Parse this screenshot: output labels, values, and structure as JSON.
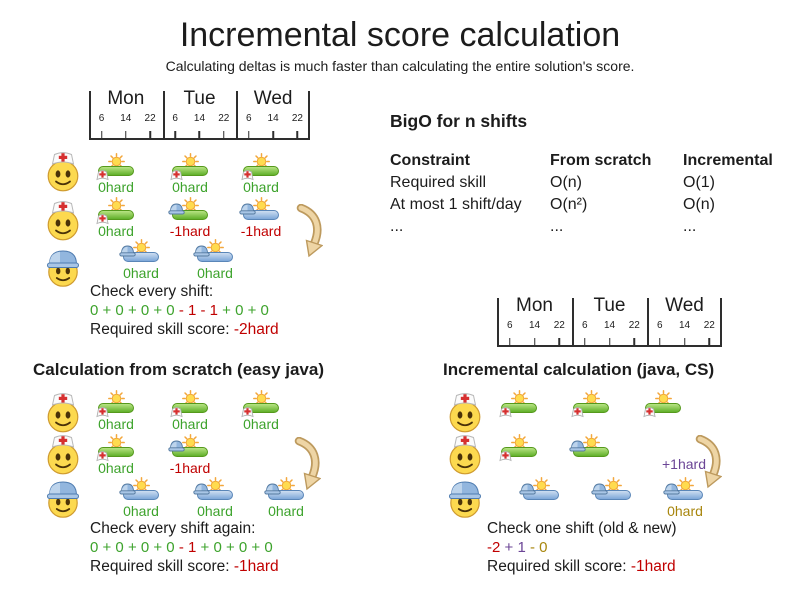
{
  "page": {
    "title": "Incremental score calculation",
    "subtitle": "Calculating deltas is much faster than calculating the entire solution's score."
  },
  "colors": {
    "positive_green": "#3da32c",
    "negative_red": "#c00000",
    "undo_purple": "#6b4596",
    "new_gold": "#a8860d",
    "arrow_tan": "#bd9a5e"
  },
  "timeline": {
    "days": [
      "Mon",
      "Tue",
      "Wed"
    ],
    "hours": [
      "6",
      "14",
      "22"
    ]
  },
  "bigo": {
    "title": "BigO for n shifts",
    "headers": [
      "Constraint",
      "From scratch",
      "Incremental"
    ],
    "rows": [
      [
        "Required skill",
        "O(n)",
        "O(1)"
      ],
      [
        "At most 1 shift/day",
        "O(n²)",
        "O(n)"
      ],
      [
        "...",
        "...",
        "..."
      ]
    ]
  },
  "sections": {
    "initial": {
      "check_label": "Check every shift:",
      "sum_parts": [
        {
          "text": "0 + 0 + 0 + 0",
          "color": "green"
        },
        {
          "text": " - 1 - 1",
          "color": "red"
        },
        {
          "text": " + 0 + 0",
          "color": "green"
        }
      ],
      "score_label": "Required skill score: ",
      "score_value": "-2hard"
    },
    "scratch": {
      "heading": "Calculation from scratch (easy java)",
      "check_label": "Check every shift again:",
      "sum_parts": [
        {
          "text": "0 + 0 + 0 + 0",
          "color": "green"
        },
        {
          "text": " - 1",
          "color": "red"
        },
        {
          "text": " + 0 + 0 + 0",
          "color": "green"
        }
      ],
      "score_label": "Required skill score: ",
      "score_value": "-1hard"
    },
    "incremental": {
      "heading": "Incremental calculation (java, CS)",
      "check_label": "Check one shift (old & new)",
      "sum_parts": [
        {
          "text": "-2",
          "color": "red"
        },
        {
          "text": " + 1",
          "color": "purple"
        },
        {
          "text": " - 0",
          "color": "gold"
        }
      ],
      "score_label": "Required skill score: ",
      "score_value": "-1hard",
      "delta_label": "+1hard"
    }
  },
  "diagrams": {
    "initial": {
      "rows": [
        {
          "employee": "nurse",
          "shifts": [
            {
              "day": 0,
              "bar": "green",
              "hat": "nurse",
              "label": "0hard",
              "label_color": "green"
            },
            {
              "day": 1,
              "bar": "green",
              "hat": "nurse",
              "label": "0hard",
              "label_color": "green"
            },
            {
              "day": 2,
              "bar": "green",
              "hat": "nurse",
              "label": "0hard",
              "label_color": "green"
            }
          ]
        },
        {
          "employee": "nurse",
          "shifts": [
            {
              "day": 0,
              "bar": "green",
              "hat": "nurse",
              "label": "0hard",
              "label_color": "green"
            },
            {
              "day": 1,
              "bar": "green",
              "hat": "helmet",
              "label": "-1hard",
              "label_color": "red"
            },
            {
              "day": 2,
              "bar": "blue",
              "hat": "helmet",
              "label": "-1hard",
              "label_color": "red"
            }
          ]
        },
        {
          "employee": "worker",
          "shifts": [
            {
              "day": 0,
              "late": true,
              "bar": "blue",
              "hat": "helmet",
              "label": "0hard",
              "label_color": "green"
            },
            {
              "day": 1,
              "late": true,
              "bar": "blue",
              "hat": "helmet",
              "label": "0hard",
              "label_color": "green"
            }
          ]
        }
      ]
    },
    "scratch": {
      "rows": [
        {
          "employee": "nurse",
          "shifts": [
            {
              "day": 0,
              "bar": "green",
              "hat": "nurse",
              "label": "0hard",
              "label_color": "green"
            },
            {
              "day": 1,
              "bar": "green",
              "hat": "nurse",
              "label": "0hard",
              "label_color": "green"
            },
            {
              "day": 2,
              "bar": "green",
              "hat": "nurse",
              "label": "0hard",
              "label_color": "green"
            }
          ]
        },
        {
          "employee": "nurse",
          "shifts": [
            {
              "day": 0,
              "bar": "green",
              "hat": "nurse",
              "label": "0hard",
              "label_color": "green"
            },
            {
              "day": 1,
              "bar": "green",
              "hat": "helmet",
              "label": "-1hard",
              "label_color": "red"
            }
          ]
        },
        {
          "employee": "worker",
          "shifts": [
            {
              "day": 0,
              "late": true,
              "bar": "blue",
              "hat": "helmet",
              "label": "0hard",
              "label_color": "green"
            },
            {
              "day": 1,
              "late": true,
              "bar": "blue",
              "hat": "helmet",
              "label": "0hard",
              "label_color": "green"
            },
            {
              "day": 2,
              "late": true,
              "bar": "blue",
              "hat": "helmet",
              "label": "0hard",
              "label_color": "green"
            }
          ]
        }
      ]
    },
    "incremental": {
      "rows": [
        {
          "employee": "nurse",
          "shifts": [
            {
              "day": 0,
              "bar": "green",
              "hat": "nurse"
            },
            {
              "day": 1,
              "bar": "green",
              "hat": "nurse"
            },
            {
              "day": 2,
              "bar": "green",
              "hat": "nurse"
            }
          ]
        },
        {
          "employee": "nurse",
          "shifts": [
            {
              "day": 0,
              "bar": "green",
              "hat": "nurse"
            },
            {
              "day": 1,
              "bar": "green",
              "hat": "helmet"
            }
          ]
        },
        {
          "employee": "worker",
          "shifts": [
            {
              "day": 0,
              "late": true,
              "bar": "blue",
              "hat": "helmet"
            },
            {
              "day": 1,
              "late": true,
              "bar": "blue",
              "hat": "helmet"
            },
            {
              "day": 2,
              "late": true,
              "bar": "blue",
              "hat": "helmet",
              "label": "0hard",
              "label_color": "gold"
            }
          ]
        }
      ]
    }
  }
}
